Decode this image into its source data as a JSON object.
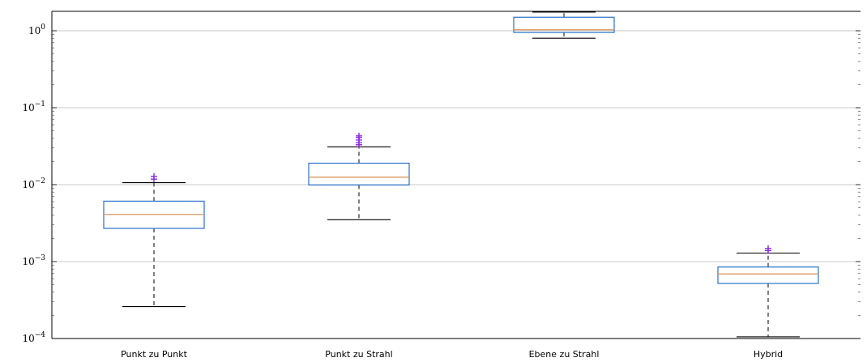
{
  "chart_data": {
    "type": "boxplot",
    "title": "",
    "xlabel": "",
    "ylabel": "",
    "y_scale": "log",
    "ylim": [
      0.0001,
      2
    ],
    "grid": "horizontal major",
    "y_ticks": [
      {
        "value": 0.0001,
        "base": "10",
        "exp": "−4"
      },
      {
        "value": 0.001,
        "base": "10",
        "exp": "−3"
      },
      {
        "value": 0.01,
        "base": "10",
        "exp": "−2"
      },
      {
        "value": 0.1,
        "base": "10",
        "exp": "−1"
      },
      {
        "value": 1,
        "base": "10",
        "exp": "0"
      }
    ],
    "colors": {
      "box": "#2a72c9",
      "median": "#d9975b",
      "whisker": "#000000",
      "outlier": "#8a2be2",
      "grid": "#c8c8c8"
    },
    "categories": [
      "Punkt zu Punkt",
      "Punkt zu Strahl",
      "Ebene zu Strahl",
      "Hybrid"
    ],
    "boxes": [
      {
        "category": "Punkt zu Punkt",
        "whisker_low": 0.00026,
        "q1": 0.0027,
        "median": 0.0041,
        "q3": 0.0061,
        "whisker_high": 0.0106,
        "outliers": [
          0.0118,
          0.0128
        ]
      },
      {
        "category": "Punkt zu Strahl",
        "whisker_low": 0.0035,
        "q1": 0.0099,
        "median": 0.0125,
        "q3": 0.019,
        "whisker_high": 0.031,
        "outliers": [
          0.033,
          0.035,
          0.038,
          0.041,
          0.043
        ]
      },
      {
        "category": "Ebene zu Strahl",
        "whisker_low": 0.8,
        "q1": 0.95,
        "median": 1.03,
        "q3": 1.5,
        "whisker_high": 1.75,
        "outliers": []
      },
      {
        "category": "Hybrid",
        "whisker_low": 0.000105,
        "q1": 0.00052,
        "median": 0.00069,
        "q3": 0.00085,
        "whisker_high": 0.00129,
        "outliers": [
          0.00139,
          0.00148
        ]
      }
    ]
  }
}
